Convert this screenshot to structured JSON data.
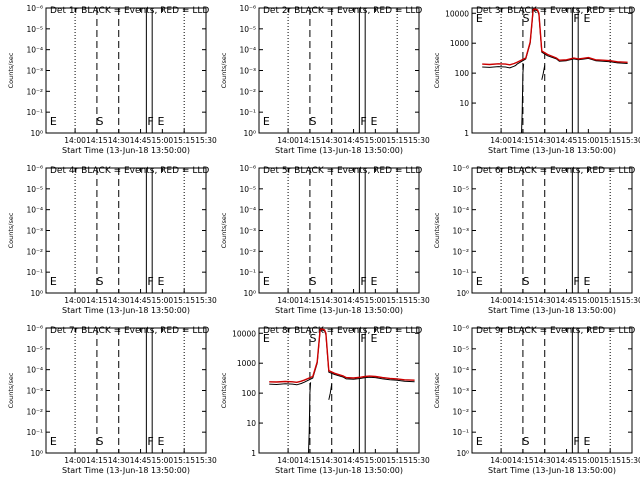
{
  "chart_data": [
    {
      "panel": "Det 1r",
      "type": "line",
      "title": "Det 1r BLACK = Events, RED = LLD",
      "xlabel": "Start Time (13-Jun-18 13:50:00)",
      "ylabel": "Counts/sec",
      "yticks": [
        "10⁰",
        "10⁻¹",
        "10⁻²",
        "10⁻³",
        "10⁻⁴",
        "10⁻⁵",
        "10⁻⁶"
      ],
      "xticks": [
        "14:00",
        "14:15",
        "14:30",
        "14:45",
        "15:00",
        "15:15",
        "15:30"
      ],
      "markers": [
        "E",
        "S",
        "F",
        "E"
      ],
      "has_data": false,
      "series": []
    },
    {
      "panel": "Det 2r",
      "type": "line",
      "title": "Det 2r BLACK = Events, RED = LLD",
      "xlabel": "Start Time (13-Jun-18 13:50:00)",
      "ylabel": "Counts/sec",
      "yticks": [
        "10⁰",
        "10⁻¹",
        "10⁻²",
        "10⁻³",
        "10⁻⁴",
        "10⁻⁵",
        "10⁻⁶"
      ],
      "xticks": [
        "14:00",
        "14:15",
        "14:30",
        "14:45",
        "15:00",
        "15:15",
        "15:30"
      ],
      "markers": [
        "E",
        "S",
        "F",
        "E"
      ],
      "has_data": false,
      "series": []
    },
    {
      "panel": "Det 3r",
      "type": "line",
      "title": "Det 3r BLACK = Events, RED = LLD",
      "xlabel": "Start Time (13-Jun-18 13:50:00)",
      "ylabel": "Counts/sec",
      "yticks": [
        "1",
        "10",
        "100",
        "1000",
        "10000"
      ],
      "xticks": [
        "14:00",
        "14:15",
        "14:30",
        "14:45",
        "15:00",
        "15:15",
        "15:30"
      ],
      "markers": [
        "E",
        "S",
        "F",
        "E"
      ],
      "has_data": true,
      "series": [
        {
          "color": "#000000",
          "x": [
            -3,
            2,
            8,
            13,
            16,
            19,
            20,
            21,
            27,
            30,
            32,
            33,
            35,
            36,
            38,
            42,
            48,
            50,
            55,
            60,
            63,
            66,
            70,
            75,
            80,
            85,
            90,
            97
          ],
          "y": [
            160,
            155,
            165,
            160,
            150,
            170,
            180,
            200,
            300,
            1000,
            12000,
            13000,
            12000,
            9000,
            500,
            380,
            300,
            250,
            260,
            300,
            280,
            290,
            310,
            260,
            250,
            240,
            220,
            210
          ]
        },
        {
          "color": "#cc0000",
          "x": [
            -3,
            2,
            8,
            13,
            16,
            19,
            20,
            21,
            27,
            30,
            32,
            33,
            35,
            36,
            38,
            42,
            48,
            50,
            55,
            60,
            63,
            66,
            70,
            75,
            80,
            85,
            90,
            97
          ],
          "y": [
            200,
            195,
            205,
            200,
            190,
            210,
            220,
            230,
            320,
            1100,
            13000,
            14000,
            13000,
            10000,
            550,
            420,
            320,
            270,
            280,
            320,
            300,
            310,
            330,
            280,
            270,
            260,
            240,
            230
          ]
        },
        {
          "color": "#000000",
          "x": [
            24,
            24.5,
            25,
            25.5
          ],
          "y": [
            1,
            5,
            100,
            200
          ]
        },
        {
          "color": "#000000",
          "x": [
            38,
            39,
            40
          ],
          "y": [
            60,
            100,
            180
          ]
        }
      ]
    },
    {
      "panel": "Det 4r",
      "type": "line",
      "title": "Det 4r BLACK = Events, RED = LLD",
      "xlabel": "Start Time (13-Jun-18 13:50:00)",
      "ylabel": "Counts/sec",
      "yticks": [
        "10⁰",
        "10⁻¹",
        "10⁻²",
        "10⁻³",
        "10⁻⁴",
        "10⁻⁵",
        "10⁻⁶"
      ],
      "xticks": [
        "14:00",
        "14:15",
        "14:30",
        "14:45",
        "15:00",
        "15:15",
        "15:30"
      ],
      "markers": [
        "E",
        "S",
        "F",
        "E"
      ],
      "has_data": false,
      "series": []
    },
    {
      "panel": "Det 5r",
      "type": "line",
      "title": "Det 5r BLACK = Events, RED = LLD",
      "xlabel": "Start Time (13-Jun-18 13:50:00)",
      "ylabel": "Counts/sec",
      "yticks": [
        "10⁰",
        "10⁻¹",
        "10⁻²",
        "10⁻³",
        "10⁻⁴",
        "10⁻⁵",
        "10⁻⁶"
      ],
      "xticks": [
        "14:00",
        "14:15",
        "14:30",
        "14:45",
        "15:00",
        "15:15",
        "15:30"
      ],
      "markers": [
        "E",
        "S",
        "F",
        "E"
      ],
      "has_data": false,
      "series": []
    },
    {
      "panel": "Det 6r",
      "type": "line",
      "title": "Det 6r BLACK = Events, RED = LLD",
      "xlabel": "Start Time (13-Jun-18 13:50:00)",
      "ylabel": "Counts/sec",
      "yticks": [
        "10⁰",
        "10⁻¹",
        "10⁻²",
        "10⁻³",
        "10⁻⁴",
        "10⁻⁵",
        "10⁻⁶"
      ],
      "xticks": [
        "14:00",
        "14:15",
        "14:30",
        "14:45",
        "15:00",
        "15:15",
        "15:30"
      ],
      "markers": [
        "E",
        "S",
        "F",
        "E"
      ],
      "has_data": false,
      "series": []
    },
    {
      "panel": "Det 7r",
      "type": "line",
      "title": "Det 7r BLACK = Events, RED = LLD",
      "xlabel": "Start Time (13-Jun-18 13:50:00)",
      "ylabel": "Counts/sec",
      "yticks": [
        "10⁰",
        "10⁻¹",
        "10⁻²",
        "10⁻³",
        "10⁻⁴",
        "10⁻⁵",
        "10⁻⁶"
      ],
      "xticks": [
        "14:00",
        "14:15",
        "14:30",
        "14:45",
        "15:00",
        "15:15",
        "15:30"
      ],
      "markers": [
        "E",
        "S",
        "F",
        "E"
      ],
      "has_data": false,
      "series": []
    },
    {
      "panel": "Det 8r",
      "type": "line",
      "title": "Det 8r BLACK = Events, RED = LLD",
      "xlabel": "Start Time (13-Jun-18 13:50:00)",
      "ylabel": "Counts/sec",
      "yticks": [
        "1",
        "10",
        "100",
        "1000",
        "10000"
      ],
      "xticks": [
        "14:00",
        "14:15",
        "14:30",
        "14:45",
        "15:00",
        "15:15",
        "15:30"
      ],
      "markers": [
        "E",
        "S",
        "F",
        "E"
      ],
      "has_data": true,
      "series": [
        {
          "color": "#000000",
          "x": [
            -3,
            2,
            8,
            13,
            16,
            19,
            20,
            21,
            27,
            30,
            32,
            33,
            35,
            36,
            38,
            42,
            48,
            50,
            55,
            60,
            63,
            66,
            70,
            75,
            80,
            85,
            90,
            97
          ],
          "y": [
            200,
            195,
            205,
            200,
            190,
            210,
            220,
            230,
            320,
            1000,
            12000,
            13000,
            12000,
            9000,
            500,
            420,
            340,
            300,
            290,
            310,
            330,
            340,
            330,
            300,
            280,
            270,
            250,
            240
          ]
        },
        {
          "color": "#cc0000",
          "x": [
            -3,
            2,
            8,
            13,
            16,
            19,
            20,
            21,
            27,
            30,
            32,
            33,
            35,
            36,
            38,
            42,
            48,
            50,
            55,
            60,
            63,
            66,
            70,
            75,
            80,
            85,
            90,
            97
          ],
          "y": [
            240,
            235,
            245,
            240,
            230,
            250,
            260,
            270,
            360,
            1100,
            13000,
            14000,
            13000,
            10000,
            560,
            460,
            370,
            330,
            320,
            340,
            360,
            370,
            360,
            330,
            310,
            300,
            280,
            270
          ]
        },
        {
          "color": "#000000",
          "x": [
            24,
            24.5,
            25,
            25.5
          ],
          "y": [
            1,
            5,
            100,
            230
          ]
        },
        {
          "color": "#000000",
          "x": [
            38,
            39,
            40
          ],
          "y": [
            60,
            100,
            200
          ]
        }
      ]
    },
    {
      "panel": "Det 9r",
      "type": "line",
      "title": "Det 9r BLACK = Events, RED = LLD",
      "xlabel": "Start Time (13-Jun-18 13:50:00)",
      "ylabel": "Counts/sec",
      "yticks": [
        "10⁰",
        "10⁻¹",
        "10⁻²",
        "10⁻³",
        "10⁻⁴",
        "10⁻⁵",
        "10⁻⁶"
      ],
      "xticks": [
        "14:00",
        "14:15",
        "14:30",
        "14:45",
        "15:00",
        "15:15",
        "15:30"
      ],
      "markers": [
        "E",
        "S",
        "F",
        "E"
      ],
      "has_data": false,
      "series": []
    }
  ]
}
